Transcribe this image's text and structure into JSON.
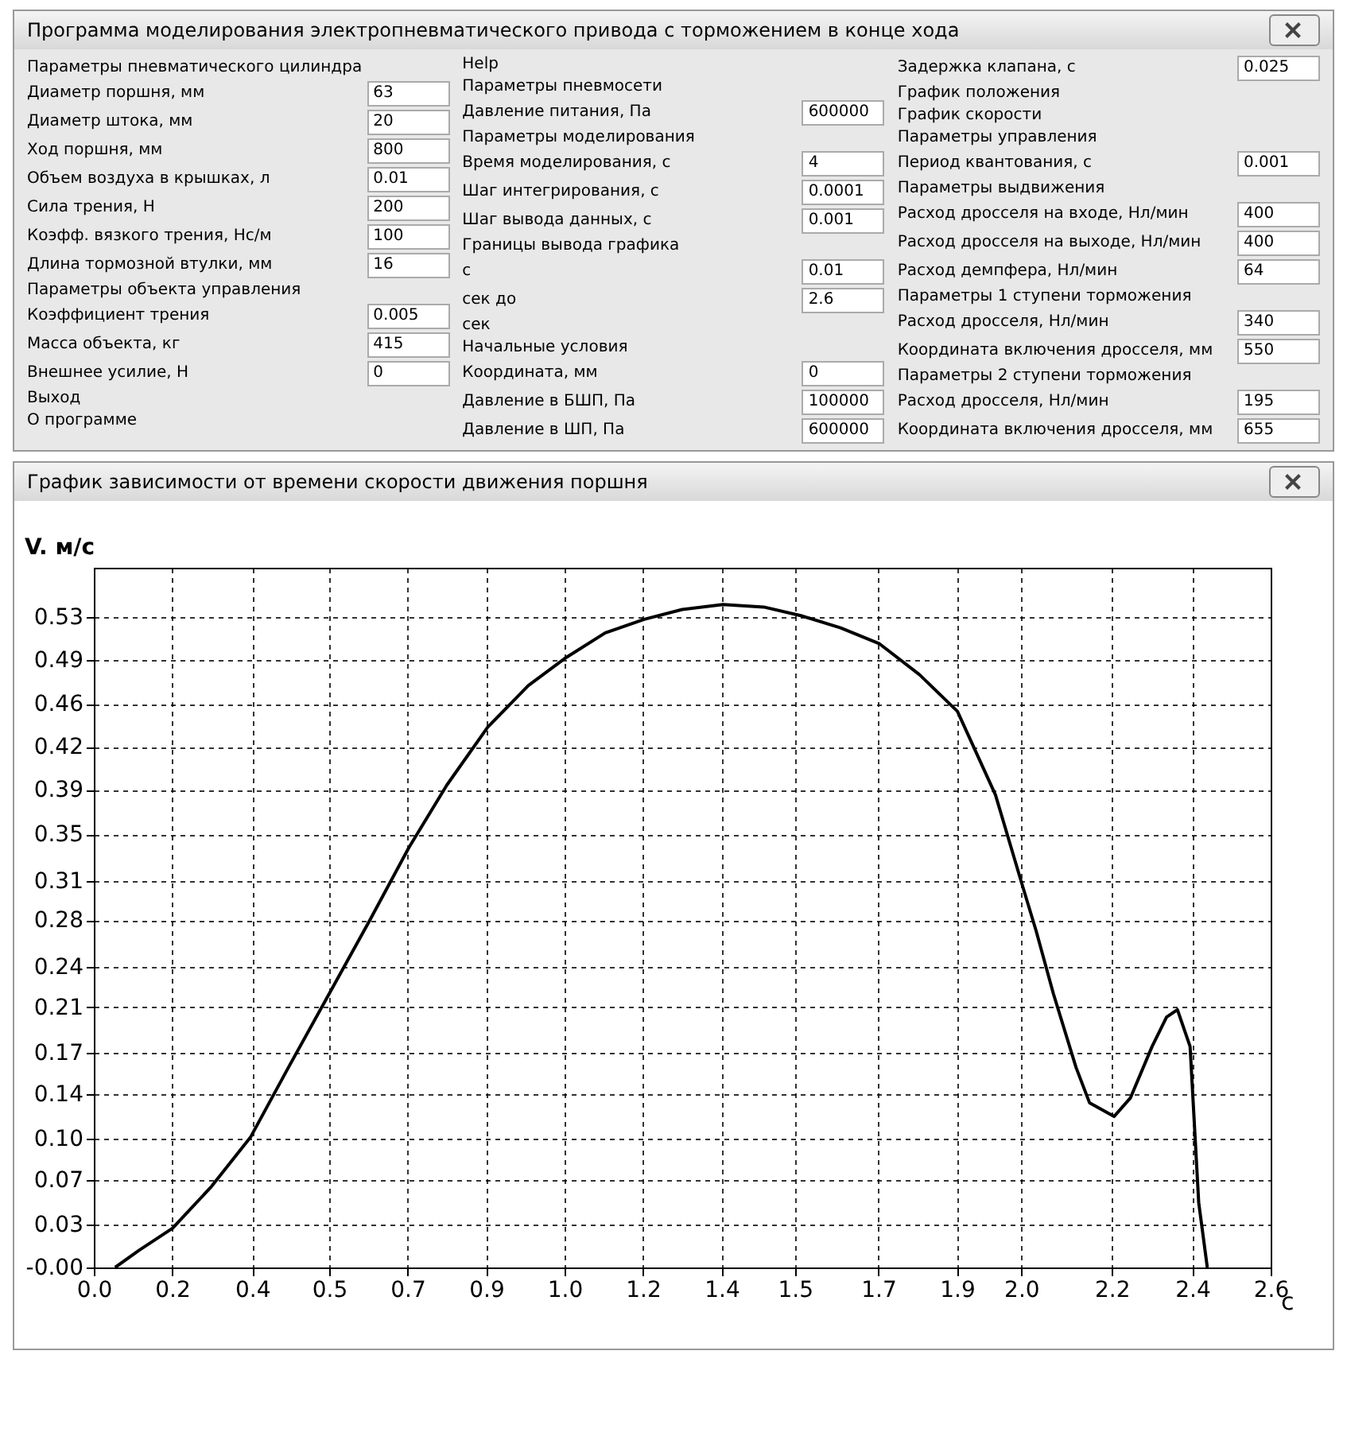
{
  "chart_data": [
    {
      "type": "other",
      "title": "Программа моделирования электропневматического привода с торможением в конце хода",
      "annotations": [
        "Параметры пневматического цилиндра",
        "Диаметр поршня, мм",
        "63",
        "Диаметр штока, мм",
        "20",
        "Ход поршня, мм",
        "800",
        "Объем воздуха в крышках, л",
        "0.01",
        "Сила трения, Н",
        "200",
        "Коэфф. вязкого трения, Нс/м",
        "100",
        "Длина тормозной втулки, мм",
        "16",
        "Параметры объекта управления",
        "Коэффициент трения",
        "0.005",
        "Масса объекта, кг",
        "415",
        "Внешнее усилие, Н",
        "0",
        "Выход",
        "О программе",
        "Help",
        "Параметры пневмосети",
        "Давление питания, Па",
        "600000",
        "Параметры моделирования",
        "Время моделирования, с",
        "4",
        "Шаг интегрирования, с",
        "0.0001",
        "Шаг вывода данных, с",
        "0.001",
        "Границы вывода графика",
        "с",
        "0.01",
        "сек до",
        "2.6",
        "сек",
        "Начальные условия",
        "Координата, мм",
        "0",
        "Давление в БШП, Па",
        "100000",
        "Давление в ШП, Па",
        "600000",
        "Задержка клапана, с",
        "0.025",
        "График положения",
        "График скорости",
        "Параметры управления",
        "Период квантования, с",
        "0.001",
        "Параметры выдвижения",
        "Расход дросселя на входе, Нл/мин",
        "400",
        "Расход дросселя на выходе, Нл/мин",
        "400",
        "Расход демпфера, Нл/мин",
        "64",
        "Параметры 1 ступени торможения",
        "Расход дросселя, Нл/мин",
        "340",
        "Координата включения дросселя, мм",
        "550",
        "Параметры 2 ступени торможения",
        "Расход дросселя, Нл/мин",
        "195",
        "Координата включения дросселя, мм",
        "655"
      ]
    },
    {
      "type": "line",
      "title": "График зависимости от времени скорости движения поршня",
      "xlabel": "c",
      "ylabel": "V. м/с",
      "x": [
        0.047,
        0.1,
        0.174,
        0.26,
        0.346,
        0.43,
        0.52,
        0.61,
        0.696,
        0.78,
        0.87,
        0.96,
        1.044,
        1.13,
        1.216,
        1.3,
        1.39,
        1.48,
        1.562,
        1.65,
        1.736,
        1.824,
        1.908,
        1.992,
        2.05,
        2.082,
        2.12,
        2.17,
        2.2,
        2.254,
        2.29,
        2.338,
        2.37,
        2.394,
        2.422,
        2.441,
        2.46
      ],
      "series": [
        {
          "color": "#000000",
          "values": [
            0,
            0.014,
            0.032,
            0.066,
            0.106,
            0.163,
            0.223,
            0.283,
            0.342,
            0.393,
            0.44,
            0.474,
            0.497,
            0.517,
            0.528,
            0.536,
            0.54,
            0.538,
            0.531,
            0.521,
            0.508,
            0.483,
            0.453,
            0.385,
            0.313,
            0.274,
            0.223,
            0.163,
            0.134,
            0.123,
            0.138,
            0.18,
            0.204,
            0.21,
            0.18,
            0.053,
            0
          ]
        }
      ],
      "xlim": [
        0,
        2.6
      ],
      "ylim": [
        0,
        0.57
      ],
      "xticks": [
        {
          "value": 0,
          "label": "0.0"
        },
        {
          "value": 0.173,
          "label": "0.2"
        },
        {
          "value": 0.35,
          "label": "0.4"
        },
        {
          "value": 0.52,
          "label": "0.5"
        },
        {
          "value": 0.693,
          "label": "0.7"
        },
        {
          "value": 0.867,
          "label": "0.9"
        },
        {
          "value": 1.04,
          "label": "1.0"
        },
        {
          "value": 1.213,
          "label": "1.2"
        },
        {
          "value": 1.387,
          "label": "1.4"
        },
        {
          "value": 1.549,
          "label": "1.5"
        },
        {
          "value": 1.733,
          "label": "1.7"
        },
        {
          "value": 1.907,
          "label": "1.9"
        },
        {
          "value": 2.049,
          "label": "2.0"
        },
        {
          "value": 2.249,
          "label": "2.2"
        },
        {
          "value": 2.427,
          "label": "2.4"
        },
        {
          "value": 2.6,
          "label": "2.6"
        }
      ],
      "yticks": [
        {
          "value": 0,
          "label": "-0.00"
        },
        {
          "value": 0.035,
          "label": "0.03"
        },
        {
          "value": 0.071,
          "label": "0.07"
        },
        {
          "value": 0.1049,
          "label": "0.10"
        },
        {
          "value": 0.141,
          "label": "0.14"
        },
        {
          "value": 0.1749,
          "label": "0.17"
        },
        {
          "value": 0.212,
          "label": "0.21"
        },
        {
          "value": 0.2449,
          "label": "0.24"
        },
        {
          "value": 0.283,
          "label": "0.28"
        },
        {
          "value": 0.3149,
          "label": "0.31"
        },
        {
          "value": 0.353,
          "label": "0.35"
        },
        {
          "value": 0.389,
          "label": "0.39"
        },
        {
          "value": 0.424,
          "label": "0.42"
        },
        {
          "value": 0.459,
          "label": "0.46"
        },
        {
          "value": 0.495,
          "label": "0.49"
        },
        {
          "value": 0.53,
          "label": "0.53"
        }
      ],
      "grid": true,
      "line_style": "solid"
    }
  ]
}
